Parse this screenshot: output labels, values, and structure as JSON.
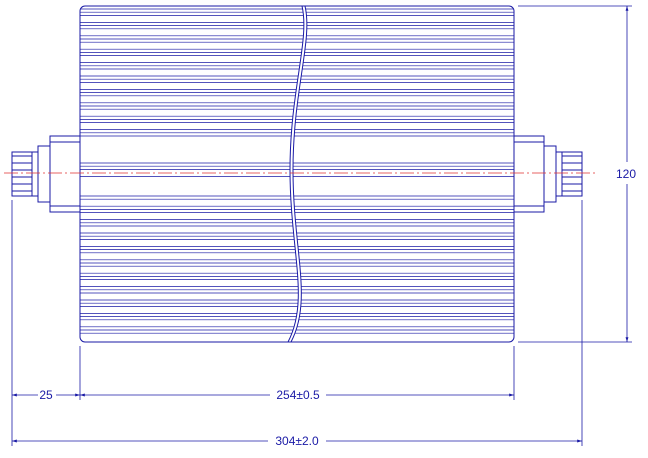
{
  "dimensions": {
    "connector_length": "25",
    "body_length": "254±0.5",
    "overall_length": "304±2.0",
    "height": "120"
  },
  "colors": {
    "line": "#1a1aa6",
    "centerline": "#e03030",
    "background": "#ffffff"
  }
}
